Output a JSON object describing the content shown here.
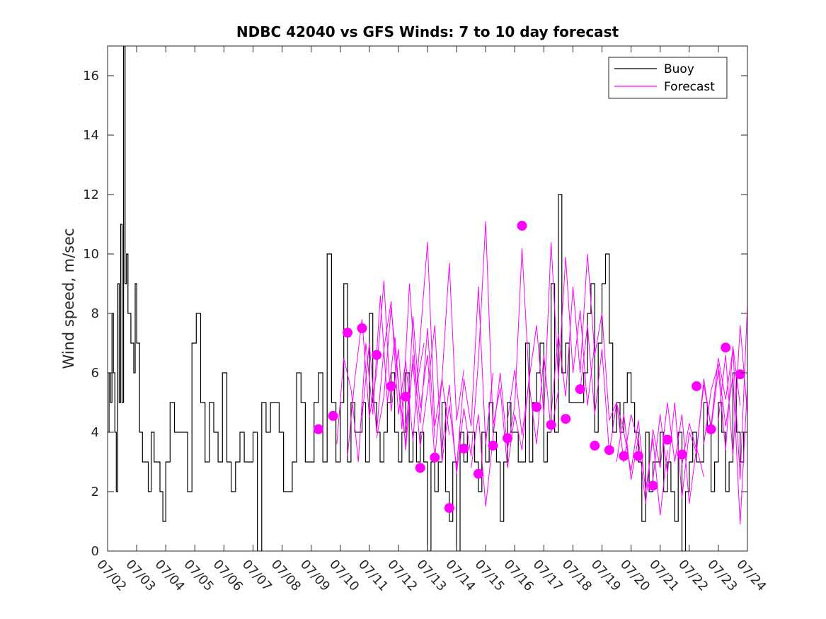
{
  "chart_data": {
    "type": "line",
    "title": "NDBC 42040 vs GFS Winds: 7 to 10 day forecast",
    "xlabel": "",
    "ylabel": "Wind speed, m/sec",
    "xlim": [
      "07/02",
      "07/24"
    ],
    "ylim": [
      0,
      17
    ],
    "x_ticks": [
      "07/02",
      "07/03",
      "07/04",
      "07/05",
      "07/06",
      "07/07",
      "07/08",
      "07/09",
      "07/10",
      "07/11",
      "07/12",
      "07/13",
      "07/14",
      "07/15",
      "07/16",
      "07/17",
      "07/18",
      "07/19",
      "07/20",
      "07/21",
      "07/22",
      "07/23",
      "07/24"
    ],
    "y_ticks": [
      0,
      2,
      4,
      6,
      8,
      10,
      12,
      14,
      16
    ],
    "grid": false,
    "legend": {
      "placement": "top-right",
      "entries": [
        "Buoy",
        "Forecast"
      ]
    },
    "colors": {
      "buoy": "#000000",
      "forecast": "#ff00ff"
    },
    "series": [
      {
        "name": "Buoy",
        "day": [
          0.0,
          0.05,
          0.1,
          0.15,
          0.2,
          0.25,
          0.3,
          0.35,
          0.4,
          0.45,
          0.5,
          0.55,
          0.6,
          0.65,
          0.7,
          0.75,
          0.8,
          0.85,
          0.9,
          0.95,
          1.0,
          1.1,
          1.2,
          1.3,
          1.4,
          1.5,
          1.6,
          1.7,
          1.8,
          1.9,
          2.0,
          2.15,
          2.3,
          2.45,
          2.6,
          2.75,
          2.9,
          3.05,
          3.2,
          3.35,
          3.5,
          3.65,
          3.8,
          3.95,
          4.1,
          4.25,
          4.4,
          4.55,
          4.7,
          4.85,
          5.0,
          5.15,
          5.3,
          5.45,
          5.6,
          5.75,
          5.9,
          6.05,
          6.2,
          6.35,
          6.5,
          6.65,
          6.8,
          6.95,
          7.1,
          7.25,
          7.4,
          7.55,
          7.7,
          7.85,
          8.0,
          8.12,
          8.25,
          8.37,
          8.5,
          8.62,
          8.75,
          8.87,
          9.0,
          9.12,
          9.25,
          9.37,
          9.5,
          9.62,
          9.75,
          9.87,
          10.0,
          10.12,
          10.25,
          10.37,
          10.5,
          10.62,
          10.75,
          10.87,
          11.0,
          11.12,
          11.25,
          11.37,
          11.5,
          11.62,
          11.75,
          11.87,
          12.0,
          12.12,
          12.25,
          12.37,
          12.5,
          12.62,
          12.75,
          12.87,
          13.0,
          13.12,
          13.25,
          13.37,
          13.5,
          13.62,
          13.75,
          13.87,
          14.0,
          14.12,
          14.25,
          14.37,
          14.5,
          14.62,
          14.75,
          14.87,
          15.0,
          15.12,
          15.25,
          15.37,
          15.5,
          15.62,
          15.75,
          15.87,
          16.0,
          16.12,
          16.25,
          16.37,
          16.5,
          16.62,
          16.75,
          16.87,
          17.0,
          17.12,
          17.25,
          17.37,
          17.5,
          17.62,
          17.75,
          17.87,
          18.0,
          18.12,
          18.25,
          18.37,
          18.5,
          18.62,
          18.75,
          18.87,
          19.0,
          19.12,
          19.25,
          19.37,
          19.5,
          19.62,
          19.75,
          19.87,
          20.0,
          20.12,
          20.25,
          20.37,
          20.5,
          20.62,
          20.75,
          20.87,
          21.0,
          21.12,
          21.25,
          21.37,
          21.5,
          21.62,
          21.75,
          21.87,
          22.0
        ],
        "values": [
          4,
          6,
          5,
          8,
          6,
          4,
          2,
          9,
          5,
          11,
          5,
          17,
          9,
          10,
          8,
          8,
          7,
          7,
          6,
          9,
          7,
          4,
          3,
          3,
          2,
          4,
          3,
          3,
          2,
          1,
          3,
          5,
          4,
          4,
          4,
          2,
          7,
          8,
          5,
          3,
          5,
          4,
          3,
          6,
          3,
          2,
          3,
          4,
          3,
          3,
          4,
          0,
          5,
          4,
          5,
          5,
          4,
          2,
          2,
          3,
          6,
          5,
          3,
          3,
          5,
          6,
          3,
          10,
          5,
          3,
          5,
          9,
          3,
          5,
          4,
          4,
          5,
          3,
          8,
          5,
          4,
          3,
          4,
          5,
          6,
          4,
          3,
          4,
          6,
          3,
          4,
          3,
          4,
          3,
          0,
          3,
          2,
          3,
          5,
          2,
          1,
          3,
          0,
          4,
          3,
          4,
          4,
          3,
          2,
          4,
          3,
          5,
          4,
          3,
          1,
          3,
          5,
          4,
          4,
          3,
          3,
          7,
          3,
          5,
          6,
          7,
          3,
          4,
          9,
          4,
          12,
          6,
          7,
          5,
          5,
          5,
          5,
          6,
          8,
          9,
          4,
          7,
          9,
          10,
          7,
          4,
          5,
          4,
          5,
          6,
          5,
          4,
          3,
          1,
          4,
          2,
          3,
          3,
          4,
          2,
          3,
          2,
          1,
          4,
          0,
          2,
          3,
          4,
          3,
          3,
          5,
          4,
          2,
          3,
          5,
          4,
          2,
          3,
          6,
          4,
          3,
          4,
          10,
          4,
          2
        ]
      },
      {
        "name": "Forecast",
        "runs": [
          {
            "day": [
              7.88,
              8.12,
              8.38,
              8.62,
              8.88,
              9.12,
              9.38,
              9.62,
              9.88,
              10.12,
              10.38,
              10.62,
              10.88
            ],
            "values": [
              3.6,
              6.5,
              5.4,
              3.0,
              7.0,
              4.6,
              8.6,
              5.0,
              7.2,
              4.1,
              9.0,
              5.5,
              7.0
            ]
          },
          {
            "day": [
              8.25,
              8.5,
              8.75,
              9.0,
              9.25,
              9.5,
              9.75,
              10.0,
              10.25,
              10.5,
              10.75,
              11.0,
              11.25
            ],
            "values": [
              3.2,
              5.8,
              7.8,
              4.5,
              6.0,
              9.1,
              4.7,
              6.8,
              3.4,
              6.6,
              4.3,
              7.5,
              3.8
            ]
          },
          {
            "day": [
              8.75,
              9.0,
              9.25,
              9.5,
              9.75,
              10.0,
              10.25,
              10.5,
              10.75,
              11.0,
              11.25,
              11.5,
              11.75
            ],
            "values": [
              4.5,
              7.0,
              4.0,
              6.8,
              8.4,
              4.6,
              6.4,
              3.7,
              7.2,
              10.4,
              4.2,
              5.8,
              3.9
            ]
          },
          {
            "day": [
              9.25,
              9.5,
              9.75,
              10.0,
              10.25,
              10.5,
              10.75,
              11.0,
              11.25,
              11.5,
              11.75,
              12.0,
              12.25
            ],
            "values": [
              3.8,
              5.2,
              8.2,
              5.6,
              3.6,
              7.9,
              4.8,
              6.6,
              3.1,
              5.8,
              9.7,
              4.4,
              6.1
            ]
          },
          {
            "day": [
              10.25,
              10.5,
              10.75,
              11.0,
              11.25,
              11.5,
              11.75,
              12.0,
              12.25,
              12.5,
              12.75,
              13.0,
              13.25
            ],
            "values": [
              4.2,
              6.3,
              3.5,
              5.4,
              7.6,
              3.0,
              4.9,
              2.8,
              5.8,
              4.2,
              8.9,
              3.6,
              6.0
            ]
          },
          {
            "day": [
              11.5,
              11.75,
              12.0,
              12.25,
              12.5,
              12.75,
              13.0,
              13.25,
              13.5,
              13.75,
              14.0,
              14.25,
              14.5
            ],
            "values": [
              3.4,
              5.6,
              2.6,
              4.8,
              3.2,
              6.4,
              11.1,
              4.2,
              5.5,
              2.8,
              4.6,
              3.4,
              5.9
            ]
          },
          {
            "day": [
              12.5,
              12.75,
              13.0,
              13.25,
              13.5,
              13.75,
              14.0,
              14.25,
              14.5,
              14.75,
              15.0,
              15.25,
              15.5
            ],
            "values": [
              2.8,
              4.6,
              1.5,
              3.8,
              6.0,
              3.4,
              4.9,
              10.2,
              5.6,
              3.6,
              6.6,
              4.0,
              5.4
            ]
          },
          {
            "day": [
              13.75,
              14.0,
              14.25,
              14.5,
              14.75,
              15.0,
              15.25,
              15.5,
              15.75,
              16.0,
              16.25,
              16.5,
              16.75
            ],
            "values": [
              4.4,
              6.1,
              3.9,
              5.8,
              7.6,
              4.6,
              10.4,
              5.8,
              9.9,
              6.0,
              8.1,
              4.9,
              7.0
            ]
          },
          {
            "day": [
              15.25,
              15.5,
              15.75,
              16.0,
              16.25,
              16.5,
              16.75,
              17.0,
              17.25,
              17.5,
              17.75,
              18.0,
              18.25
            ],
            "values": [
              4.6,
              7.3,
              5.2,
              8.9,
              6.0,
              10.0,
              6.6,
              8.0,
              4.4,
              5.0,
              3.0,
              4.6,
              3.6
            ]
          },
          {
            "day": [
              16.25,
              16.5,
              16.75,
              17.0,
              17.25,
              17.5,
              17.75,
              18.0,
              18.25,
              18.5,
              18.75,
              19.0,
              19.25
            ],
            "values": [
              5.4,
              7.6,
              4.6,
              6.8,
              3.3,
              5.0,
              4.0,
              2.7,
              4.4,
              2.0,
              3.8,
              1.2,
              3.4
            ]
          },
          {
            "day": [
              17.5,
              17.75,
              18.0,
              18.25,
              18.5,
              18.75,
              19.0,
              19.25,
              19.5,
              19.75,
              20.0,
              20.25,
              20.5
            ],
            "values": [
              3.0,
              4.6,
              2.4,
              3.8,
              1.6,
              4.1,
              2.8,
              5.0,
              3.0,
              4.6,
              1.6,
              3.5,
              2.5
            ]
          },
          {
            "day": [
              18.75,
              19.0,
              19.25,
              19.5,
              19.75,
              20.0,
              20.25,
              20.5,
              20.75,
              21.0,
              21.25,
              21.5,
              21.75
            ],
            "values": [
              2.4,
              4.6,
              2.6,
              5.0,
              1.8,
              4.0,
              3.3,
              5.8,
              4.1,
              6.1,
              3.4,
              6.9,
              4.9
            ]
          },
          {
            "day": [
              19.75,
              20.0,
              20.25,
              20.5,
              20.75,
              21.0,
              21.25,
              21.5,
              21.75,
              22.0
            ],
            "values": [
              2.9,
              4.3,
              3.4,
              5.6,
              4.2,
              6.5,
              5.1,
              6.8,
              2.4,
              8.3
            ]
          },
          {
            "day": [
              20.5,
              20.75,
              21.0,
              21.25,
              21.5,
              21.75,
              22.0
            ],
            "values": [
              3.6,
              5.4,
              6.3,
              4.2,
              5.9,
              0.9,
              5.6
            ]
          },
          {
            "day": [
              21.0,
              21.25,
              21.5,
              21.75,
              22.0
            ],
            "values": [
              4.4,
              6.6,
              3.2,
              7.6,
              4.6
            ]
          }
        ],
        "markers": {
          "day": [
            7.25,
            7.75,
            8.25,
            8.75,
            9.25,
            9.75,
            10.25,
            10.75,
            11.25,
            11.75,
            12.25,
            12.75,
            13.25,
            13.75,
            14.25,
            14.75,
            15.25,
            15.75,
            16.25,
            16.75,
            17.25,
            17.75,
            18.25,
            18.75,
            19.25,
            19.75,
            20.25,
            20.75,
            21.25,
            21.75
          ],
          "values": [
            4.1,
            4.55,
            7.35,
            7.5,
            6.6,
            5.55,
            5.2,
            2.8,
            3.15,
            1.45,
            3.45,
            2.6,
            3.55,
            3.8,
            10.95,
            4.85,
            4.25,
            4.45,
            5.45,
            3.55,
            3.4,
            3.2,
            3.2,
            2.2,
            3.75,
            3.25,
            5.55,
            4.1,
            6.85,
            5.95
          ]
        }
      }
    ]
  }
}
